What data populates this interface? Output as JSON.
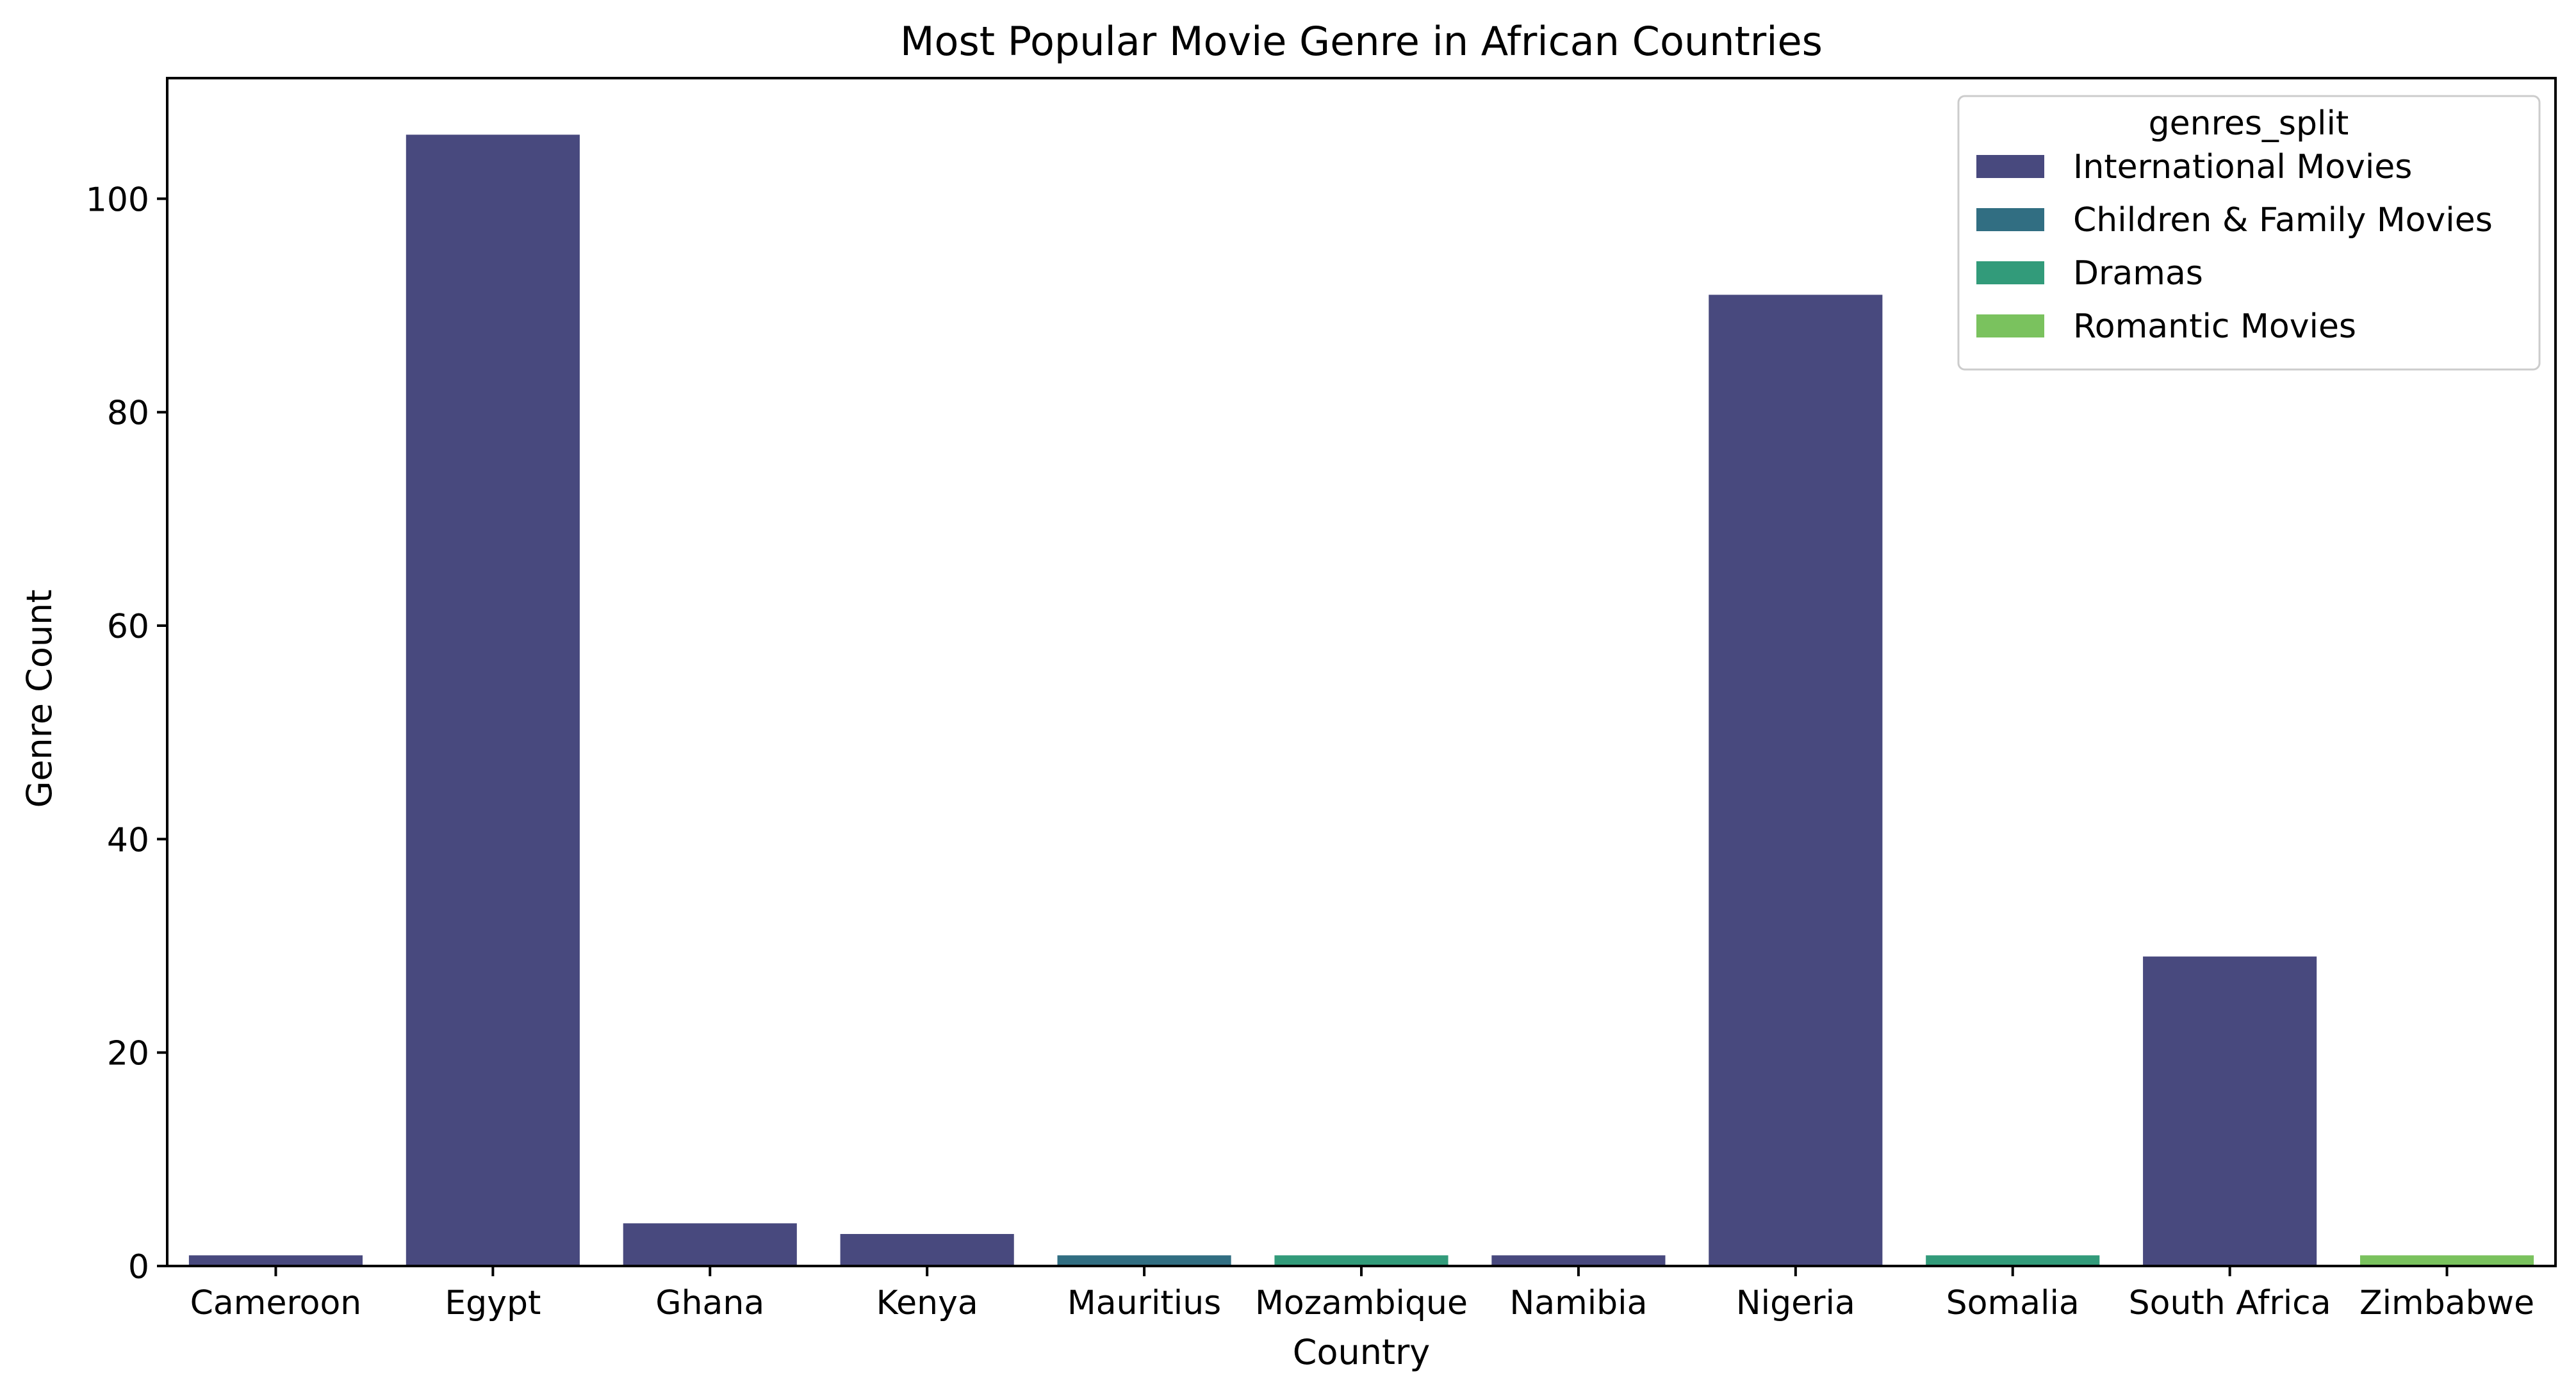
{
  "chart_data": {
    "type": "bar",
    "title": "Most Popular Movie Genre in African Countries",
    "xlabel": "Country",
    "ylabel": "Genre Count",
    "ylim": [
      0,
      111.3
    ],
    "yticks": [
      0,
      20,
      40,
      60,
      80,
      100
    ],
    "grid": false,
    "legend_position": "top-right",
    "legend_title": "genres_split",
    "legend": [
      {
        "name": "International Movies",
        "color": "#48497e"
      },
      {
        "name": "Children & Family Movies",
        "color": "#316e82"
      },
      {
        "name": "Dramas",
        "color": "#329b7a"
      },
      {
        "name": "Romantic Movies",
        "color": "#7ac25e"
      }
    ],
    "categories": [
      "Cameroon",
      "Egypt",
      "Ghana",
      "Kenya",
      "Mauritius",
      "Mozambique",
      "Namibia",
      "Nigeria",
      "Somalia",
      "South Africa",
      "Zimbabwe"
    ],
    "bars": [
      {
        "category": "Cameroon",
        "genre": "International Movies",
        "value": 1
      },
      {
        "category": "Egypt",
        "genre": "International Movies",
        "value": 106
      },
      {
        "category": "Ghana",
        "genre": "International Movies",
        "value": 4
      },
      {
        "category": "Kenya",
        "genre": "International Movies",
        "value": 3
      },
      {
        "category": "Mauritius",
        "genre": "Children & Family Movies",
        "value": 1
      },
      {
        "category": "Mozambique",
        "genre": "Dramas",
        "value": 1
      },
      {
        "category": "Namibia",
        "genre": "International Movies",
        "value": 1
      },
      {
        "category": "Nigeria",
        "genre": "International Movies",
        "value": 91
      },
      {
        "category": "Somalia",
        "genre": "Dramas",
        "value": 1
      },
      {
        "category": "South Africa",
        "genre": "International Movies",
        "value": 29
      },
      {
        "category": "Zimbabwe",
        "genre": "Romantic Movies",
        "value": 1
      }
    ]
  }
}
